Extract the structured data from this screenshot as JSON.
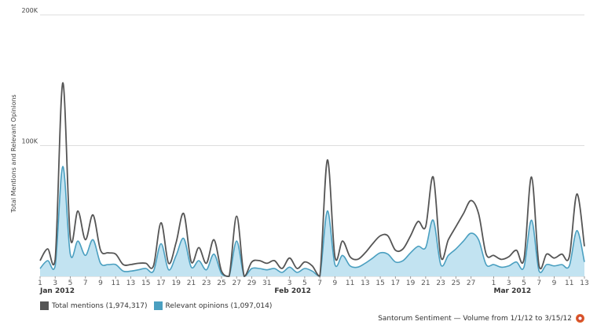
{
  "chart_data": {
    "type": "area",
    "ylabel": "Total Mentions and Relevant Opinions",
    "ylim": [
      0,
      200000
    ],
    "y_ticks": [
      {
        "value": 100000,
        "label": "100K"
      },
      {
        "value": 200000,
        "label": "200K"
      }
    ],
    "grid": true,
    "x_day_ticks": [
      {
        "label": "1",
        "day": 1
      },
      {
        "label": "3",
        "day": 3
      },
      {
        "label": "5",
        "day": 5
      },
      {
        "label": "7",
        "day": 7
      },
      {
        "label": "9",
        "day": 9
      },
      {
        "label": "11",
        "day": 11
      },
      {
        "label": "13",
        "day": 13
      },
      {
        "label": "15",
        "day": 15
      },
      {
        "label": "17",
        "day": 17
      },
      {
        "label": "19",
        "day": 19
      },
      {
        "label": "21",
        "day": 21
      },
      {
        "label": "23",
        "day": 23
      },
      {
        "label": "25",
        "day": 25
      },
      {
        "label": "27",
        "day": 27
      },
      {
        "label": "29",
        "day": 29
      },
      {
        "label": "31",
        "day": 31
      },
      {
        "label": "3",
        "day": 34
      },
      {
        "label": "5",
        "day": 36
      },
      {
        "label": "7",
        "day": 38
      },
      {
        "label": "9",
        "day": 40
      },
      {
        "label": "11",
        "day": 42
      },
      {
        "label": "13",
        "day": 44
      },
      {
        "label": "15",
        "day": 46
      },
      {
        "label": "17",
        "day": 48
      },
      {
        "label": "19",
        "day": 50
      },
      {
        "label": "21",
        "day": 52
      },
      {
        "label": "23",
        "day": 54
      },
      {
        "label": "25",
        "day": 56
      },
      {
        "label": "27",
        "day": 58
      },
      {
        "label": "1",
        "day": 61
      },
      {
        "label": "3",
        "day": 63
      },
      {
        "label": "5",
        "day": 65
      },
      {
        "label": "7",
        "day": 67
      },
      {
        "label": "9",
        "day": 69
      },
      {
        "label": "11",
        "day": 71
      },
      {
        "label": "13",
        "day": 73
      }
    ],
    "x_month_labels": [
      {
        "label": "Jan 2012",
        "day": 1
      },
      {
        "label": "Feb 2012",
        "day": 32
      },
      {
        "label": "Mar 2012",
        "day": 61
      }
    ],
    "series": [
      {
        "name": "Total mentions (1,974,317)",
        "color": "#555555",
        "points": [
          [
            1,
            12000
          ],
          [
            2,
            21000
          ],
          [
            3,
            13000
          ],
          [
            4,
            148000
          ],
          [
            5,
            30000
          ],
          [
            6,
            50000
          ],
          [
            7,
            28000
          ],
          [
            8,
            47000
          ],
          [
            9,
            20000
          ],
          [
            10,
            18000
          ],
          [
            11,
            17000
          ],
          [
            12,
            9000
          ],
          [
            13,
            9000
          ],
          [
            14,
            10000
          ],
          [
            15,
            10000
          ],
          [
            16,
            8000
          ],
          [
            17,
            41000
          ],
          [
            18,
            10000
          ],
          [
            19,
            26000
          ],
          [
            20,
            48000
          ],
          [
            21,
            11000
          ],
          [
            22,
            22000
          ],
          [
            23,
            10000
          ],
          [
            24,
            28000
          ],
          [
            25,
            4000
          ],
          [
            26,
            0
          ],
          [
            27,
            46000
          ],
          [
            28,
            0
          ],
          [
            29,
            11000
          ],
          [
            30,
            12000
          ],
          [
            31,
            10000
          ],
          [
            32,
            12000
          ],
          [
            33,
            6000
          ],
          [
            34,
            14000
          ],
          [
            35,
            6000
          ],
          [
            36,
            11000
          ],
          [
            37,
            8000
          ],
          [
            38,
            0
          ],
          [
            39,
            89000
          ],
          [
            40,
            15000
          ],
          [
            41,
            27000
          ],
          [
            42,
            15000
          ],
          [
            43,
            13000
          ],
          [
            44,
            18000
          ],
          [
            45,
            25000
          ],
          [
            46,
            31000
          ],
          [
            47,
            31000
          ],
          [
            48,
            20000
          ],
          [
            49,
            21000
          ],
          [
            50,
            31000
          ],
          [
            51,
            42000
          ],
          [
            52,
            38000
          ],
          [
            53,
            76000
          ],
          [
            54,
            15000
          ],
          [
            55,
            28000
          ],
          [
            56,
            38000
          ],
          [
            57,
            48000
          ],
          [
            58,
            58000
          ],
          [
            59,
            48000
          ],
          [
            60,
            17000
          ],
          [
            61,
            16000
          ],
          [
            62,
            13000
          ],
          [
            63,
            15000
          ],
          [
            64,
            20000
          ],
          [
            65,
            13000
          ],
          [
            66,
            76000
          ],
          [
            67,
            8000
          ],
          [
            68,
            17000
          ],
          [
            69,
            14000
          ],
          [
            70,
            17000
          ],
          [
            71,
            15000
          ],
          [
            72,
            63000
          ],
          [
            73,
            23000
          ]
        ]
      },
      {
        "name": "Relevant opinions (1,097,014)",
        "color": "#4a9fc0",
        "points": [
          [
            1,
            6000
          ],
          [
            2,
            12000
          ],
          [
            3,
            8000
          ],
          [
            4,
            84000
          ],
          [
            5,
            17000
          ],
          [
            6,
            27000
          ],
          [
            7,
            16000
          ],
          [
            8,
            28000
          ],
          [
            9,
            10000
          ],
          [
            10,
            9000
          ],
          [
            11,
            9000
          ],
          [
            12,
            4000
          ],
          [
            13,
            4000
          ],
          [
            14,
            5000
          ],
          [
            15,
            6000
          ],
          [
            16,
            4000
          ],
          [
            17,
            25000
          ],
          [
            18,
            5000
          ],
          [
            19,
            16000
          ],
          [
            20,
            29000
          ],
          [
            21,
            7000
          ],
          [
            22,
            12000
          ],
          [
            23,
            5000
          ],
          [
            24,
            17000
          ],
          [
            25,
            2000
          ],
          [
            26,
            0
          ],
          [
            27,
            27000
          ],
          [
            28,
            0
          ],
          [
            29,
            6000
          ],
          [
            30,
            6000
          ],
          [
            31,
            5000
          ],
          [
            32,
            6000
          ],
          [
            33,
            3000
          ],
          [
            34,
            7000
          ],
          [
            35,
            3000
          ],
          [
            36,
            6000
          ],
          [
            37,
            4000
          ],
          [
            38,
            0
          ],
          [
            39,
            50000
          ],
          [
            40,
            9000
          ],
          [
            41,
            16000
          ],
          [
            42,
            8000
          ],
          [
            43,
            7000
          ],
          [
            44,
            10000
          ],
          [
            45,
            14000
          ],
          [
            46,
            18000
          ],
          [
            47,
            17000
          ],
          [
            48,
            11000
          ],
          [
            49,
            12000
          ],
          [
            50,
            18000
          ],
          [
            51,
            23000
          ],
          [
            52,
            22000
          ],
          [
            53,
            43000
          ],
          [
            54,
            9000
          ],
          [
            55,
            16000
          ],
          [
            56,
            21000
          ],
          [
            57,
            27000
          ],
          [
            58,
            33000
          ],
          [
            59,
            28000
          ],
          [
            60,
            9000
          ],
          [
            61,
            9000
          ],
          [
            62,
            7000
          ],
          [
            63,
            8000
          ],
          [
            64,
            11000
          ],
          [
            65,
            7000
          ],
          [
            66,
            43000
          ],
          [
            67,
            4000
          ],
          [
            68,
            9000
          ],
          [
            69,
            8000
          ],
          [
            70,
            9000
          ],
          [
            71,
            8000
          ],
          [
            72,
            35000
          ],
          [
            73,
            11000
          ]
        ]
      }
    ]
  },
  "legend": {
    "total_label": "Total mentions (1,974,317)",
    "relevant_label": "Relevant opinions (1,097,014)"
  },
  "credit": {
    "text": "Santorum Sentiment — Volume from 1/1/12 to 3/15/12",
    "icon": "sentiment-logo-icon"
  }
}
